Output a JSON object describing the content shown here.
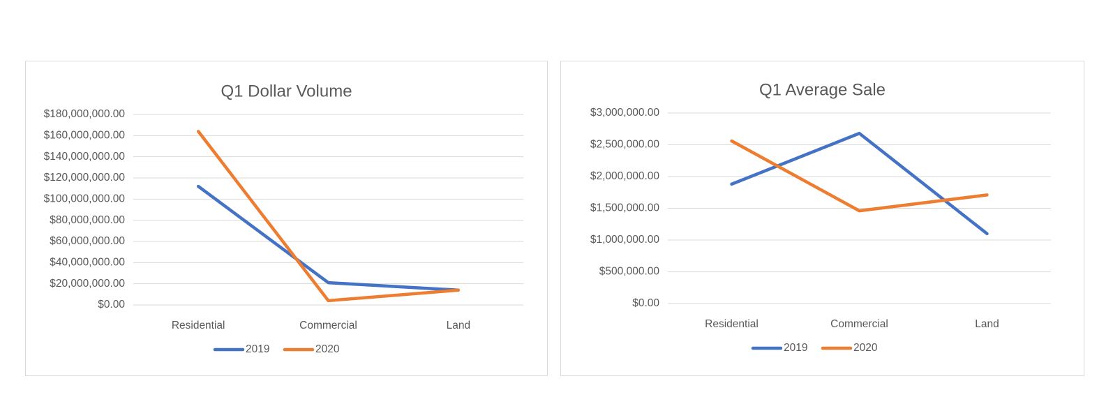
{
  "chart_data": [
    {
      "type": "line",
      "title": "Q1 Dollar Volume",
      "xlabel": "",
      "ylabel": "",
      "categories": [
        "Residential",
        "Commercial",
        "Land"
      ],
      "ylim": [
        0,
        180000000
      ],
      "yticks": [
        0,
        20000000,
        40000000,
        60000000,
        80000000,
        100000000,
        120000000,
        140000000,
        160000000,
        180000000
      ],
      "ytick_labels": [
        "$0.00",
        "$20,000,000.00",
        "$40,000,000.00",
        "$60,000,000.00",
        "$80,000,000.00",
        "$100,000,000.00",
        "$120,000,000.00",
        "$140,000,000.00",
        "$160,000,000.00",
        "$180,000,000.00"
      ],
      "grid": true,
      "legend": "bottom",
      "series": [
        {
          "name": "2019",
          "color": "#4472c4",
          "values": [
            112000000,
            21000000,
            14000000
          ]
        },
        {
          "name": "2020",
          "color": "#ed7d31",
          "values": [
            164000000,
            4000000,
            14000000
          ]
        }
      ]
    },
    {
      "type": "line",
      "title": "Q1 Average Sale",
      "xlabel": "",
      "ylabel": "",
      "categories": [
        "Residential",
        "Commercial",
        "Land"
      ],
      "ylim": [
        0,
        3000000
      ],
      "yticks": [
        0,
        500000,
        1000000,
        1500000,
        2000000,
        2500000,
        3000000
      ],
      "ytick_labels": [
        "$0.00",
        "$500,000.00",
        "$1,000,000.00",
        "$1,500,000.00",
        "$2,000,000.00",
        "$2,500,000.00",
        "$3,000,000.00"
      ],
      "grid": true,
      "legend": "bottom",
      "series": [
        {
          "name": "2019",
          "color": "#4472c4",
          "values": [
            1880000,
            2680000,
            1100000
          ]
        },
        {
          "name": "2020",
          "color": "#ed7d31",
          "values": [
            2560000,
            1460000,
            1710000
          ]
        }
      ]
    }
  ]
}
